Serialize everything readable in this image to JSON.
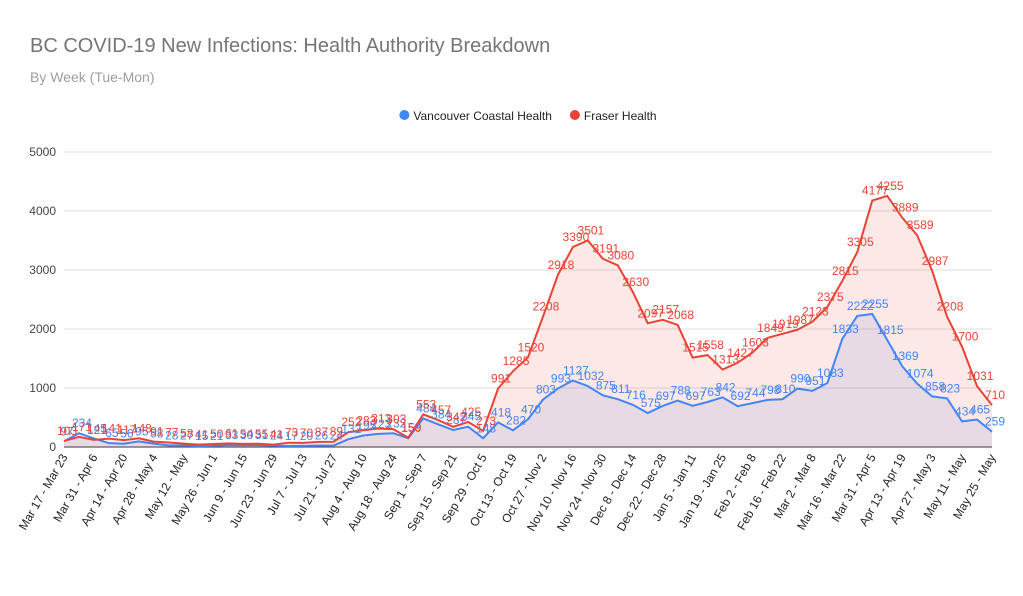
{
  "chart_data": {
    "type": "area_line",
    "title": "BC COVID-19 New Infections: Health Authority Breakdown",
    "subtitle": "By Week (Tue-Mon)",
    "categories": [
      "Mar 17 - Mar 23",
      null,
      "Mar 31 - Apr 6",
      null,
      "Apr 14 - Apr 20",
      null,
      "Apr 28 - May 4",
      null,
      "May 12 - May",
      null,
      "May 26 - Jun 1",
      null,
      "Jun 9 - Jun 15",
      null,
      "Jun 23 - Jun 29",
      null,
      "Jul 7 - Jul 13",
      null,
      "Jul 21 - Jul 27",
      null,
      "Aug 4 - Aug 10",
      null,
      "Aug 18 - Aug 24",
      null,
      "Sep 1 - Sep 7",
      null,
      "Sep 15 - Sep 21",
      null,
      "Sep 29 - Oct 5",
      null,
      "Oct 13 - Oct 19",
      null,
      "Oct 27 - Nov 2",
      null,
      "Nov 10 - Nov 16",
      null,
      "Nov 24 - Nov 30",
      null,
      "Dec 8 - Dec 14",
      null,
      "Dec 22 - Dec 28",
      null,
      "Jan 5 - Jan 11",
      null,
      "Jan 19 - Jan 25",
      null,
      "Feb 2 - Feb 8",
      null,
      "Feb 16 - Feb 22",
      null,
      "Mar 2 - Mar 8",
      null,
      "Mar 16 - Mar 22",
      null,
      "Mar 31 - Apr 5",
      null,
      "Apr 13 - Apr 19",
      null,
      "Apr 27 - May 3",
      null,
      "May 11 - May",
      null,
      "May 25 - May"
    ],
    "series": [
      {
        "name": "Vancouver Coastal Health",
        "color": "#4285f4",
        "values": [
          97,
          234,
          145,
          65,
          56,
          95,
          58,
          28,
          27,
          15,
          21,
          33,
          30,
          31,
          24,
          17,
          20,
          26,
          24,
          132,
          195,
          223,
          232,
          150,
          484,
          384,
          287,
          345,
          148,
          418,
          282,
          470,
          803,
          993,
          1127,
          1032,
          875,
          811,
          716,
          575,
          697,
          788,
          697,
          763,
          842,
          692,
          744,
          798,
          810,
          990,
          951,
          1083,
          1833,
          2222,
          2255,
          1815,
          1369,
          1074,
          858,
          823,
          434,
          465,
          259
        ]
      },
      {
        "name": "Fraser Health",
        "color": "#ea4335",
        "values": [
          103,
          171,
          121,
          141,
          117,
          148,
          91,
          77,
          58,
          41,
          50,
          61,
          54,
          55,
          41,
          73,
          70,
          87,
          89,
          252,
          283,
          313,
          303,
          159,
          553,
          457,
          342,
          425,
          273,
          991,
          1285,
          1520,
          2208,
          2918,
          3390,
          3501,
          3191,
          3080,
          2630,
          2097,
          2157,
          2068,
          1515,
          1558,
          1313,
          1427,
          1603,
          1849,
          1919,
          1987,
          2123,
          2375,
          2815,
          3305,
          4177,
          4255,
          3889,
          3589,
          2987,
          2208,
          1700,
          1031,
          710
        ]
      }
    ],
    "ylim": [
      0,
      5000
    ],
    "yticks": [
      0,
      1000,
      2000,
      3000,
      4000,
      5000
    ],
    "grid": true,
    "legend": "top"
  }
}
